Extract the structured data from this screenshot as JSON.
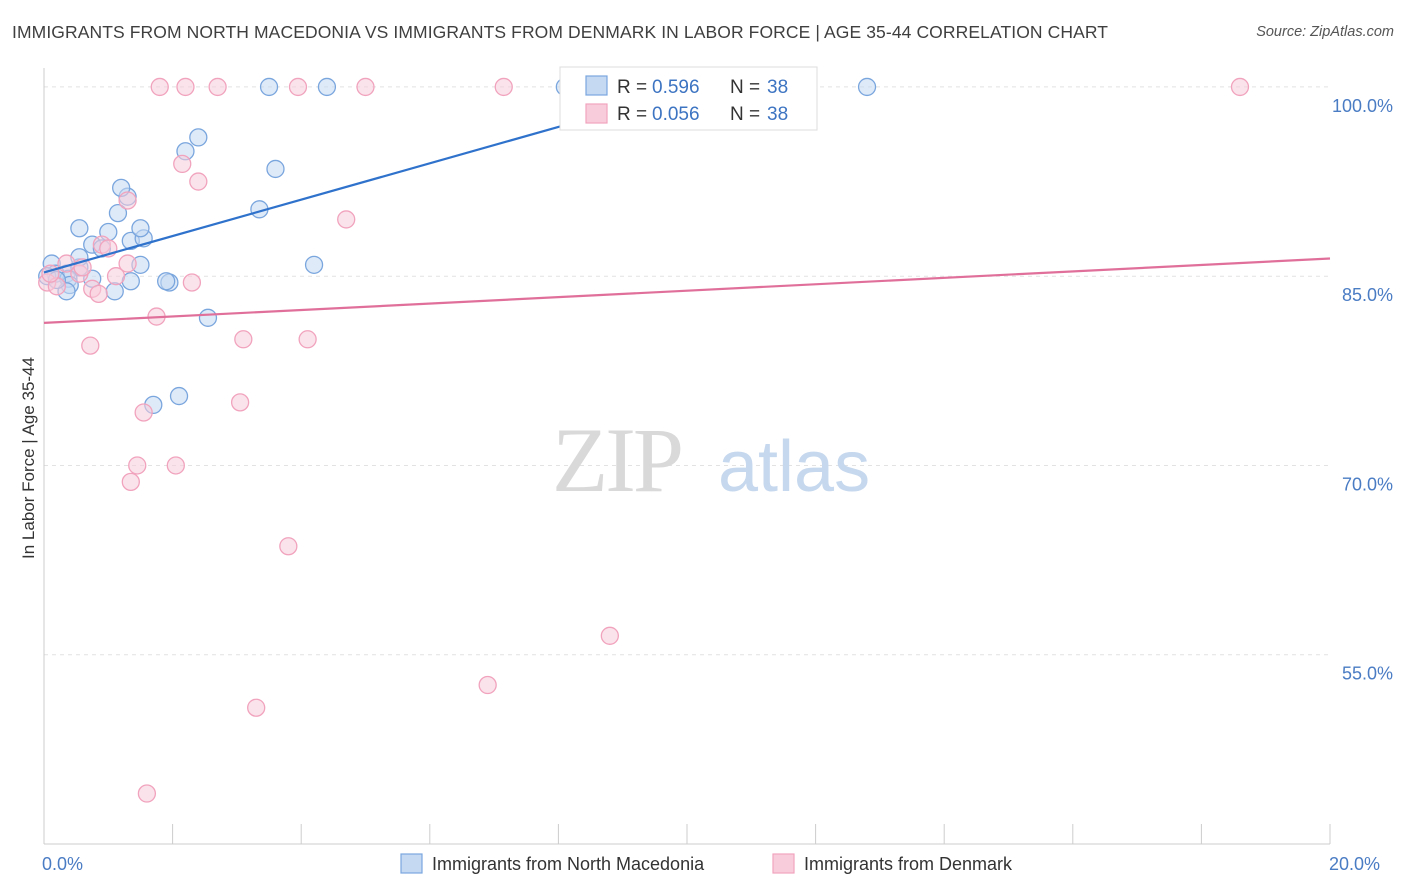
{
  "chart_data": {
    "type": "scatter",
    "title": "IMMIGRANTS FROM NORTH MACEDONIA VS IMMIGRANTS FROM DENMARK IN LABOR FORCE | AGE 35-44 CORRELATION CHART",
    "source": "Source: ZipAtlas.com",
    "ylabel": "In Labor Force | Age 35-44",
    "xlim": [
      0,
      20
    ],
    "ylim": [
      40,
      101.5
    ],
    "y_ticks": [
      {
        "value": 100,
        "label": "100.0%"
      },
      {
        "value": 85,
        "label": "85.0%"
      },
      {
        "value": 70,
        "label": "70.0%"
      },
      {
        "value": 55,
        "label": "55.0%"
      }
    ],
    "x_tick_labels": [
      {
        "value": 0,
        "label": "0.0%"
      },
      {
        "value": 20,
        "label": "20.0%"
      }
    ],
    "watermark": {
      "part1": "ZIP",
      "part2": "atlas"
    },
    "legend": [
      {
        "r_label": "R = ",
        "r_value": "0.596",
        "n_label": "N = ",
        "n_value": "38"
      },
      {
        "r_label": "R = ",
        "r_value": "0.056",
        "n_label": "N = ",
        "n_value": "38"
      }
    ],
    "series": [
      {
        "name": "Immigrants from North Macedonia",
        "color": "#7aa6de",
        "fill": "#c5d9f3",
        "line_color": "#2f72cc",
        "trend": [
          [
            0,
            85.3
          ],
          [
            10.2,
            100.0
          ]
        ],
        "points": [
          [
            0.12,
            86.0
          ],
          [
            0.35,
            85.2
          ],
          [
            0.55,
            85.7
          ],
          [
            0.18,
            85.2
          ],
          [
            0.38,
            84.8
          ],
          [
            0.75,
            84.8
          ],
          [
            0.4,
            84.3
          ],
          [
            0.35,
            83.8
          ],
          [
            1.1,
            83.8
          ],
          [
            0.55,
            86.5
          ],
          [
            0.75,
            87.5
          ],
          [
            0.9,
            87.2
          ],
          [
            0.55,
            88.8
          ],
          [
            1.0,
            88.5
          ],
          [
            1.35,
            87.8
          ],
          [
            1.55,
            88.0
          ],
          [
            1.5,
            85.9
          ],
          [
            1.35,
            84.6
          ],
          [
            1.95,
            84.5
          ],
          [
            1.5,
            88.8
          ],
          [
            1.15,
            90.0
          ],
          [
            1.3,
            91.3
          ],
          [
            1.2,
            92.0
          ],
          [
            2.2,
            94.9
          ],
          [
            2.4,
            96.0
          ],
          [
            1.9,
            84.6
          ],
          [
            3.35,
            90.3
          ],
          [
            3.6,
            93.5
          ],
          [
            4.2,
            85.9
          ],
          [
            2.55,
            81.7
          ],
          [
            1.7,
            74.8
          ],
          [
            2.1,
            75.5
          ],
          [
            3.5,
            100.0
          ],
          [
            4.4,
            100.0
          ],
          [
            8.1,
            100.0
          ],
          [
            12.8,
            100.0
          ],
          [
            0.05,
            85.0
          ],
          [
            0.2,
            84.7
          ]
        ]
      },
      {
        "name": "Immigrants from Denmark",
        "color": "#f1a3bd",
        "fill": "#f8ccdb",
        "line_color": "#e0709a",
        "trend": [
          [
            0,
            81.3
          ],
          [
            20,
            86.4
          ]
        ],
        "points": [
          [
            0.05,
            84.5
          ],
          [
            0.2,
            84.2
          ],
          [
            0.35,
            86.0
          ],
          [
            0.55,
            85.2
          ],
          [
            0.6,
            85.7
          ],
          [
            0.75,
            84.0
          ],
          [
            0.85,
            83.6
          ],
          [
            0.9,
            87.5
          ],
          [
            1.0,
            87.2
          ],
          [
            1.12,
            85.0
          ],
          [
            1.3,
            91.0
          ],
          [
            1.3,
            86.0
          ],
          [
            0.72,
            79.5
          ],
          [
            1.75,
            81.8
          ],
          [
            2.3,
            84.5
          ],
          [
            2.4,
            92.5
          ],
          [
            2.15,
            93.9
          ],
          [
            3.1,
            80.0
          ],
          [
            4.1,
            80.0
          ],
          [
            3.05,
            75.0
          ],
          [
            1.55,
            74.2
          ],
          [
            1.45,
            70.0
          ],
          [
            1.35,
            68.7
          ],
          [
            2.05,
            70.0
          ],
          [
            3.8,
            63.6
          ],
          [
            4.7,
            89.5
          ],
          [
            2.2,
            100.0
          ],
          [
            1.8,
            100.0
          ],
          [
            2.7,
            100.0
          ],
          [
            3.95,
            100.0
          ],
          [
            5.0,
            100.0
          ],
          [
            7.15,
            100.0
          ],
          [
            18.6,
            100.0
          ],
          [
            8.8,
            56.5
          ],
          [
            6.9,
            52.6
          ],
          [
            3.3,
            50.8
          ],
          [
            1.6,
            44.0
          ],
          [
            0.1,
            85.2
          ]
        ]
      }
    ]
  }
}
